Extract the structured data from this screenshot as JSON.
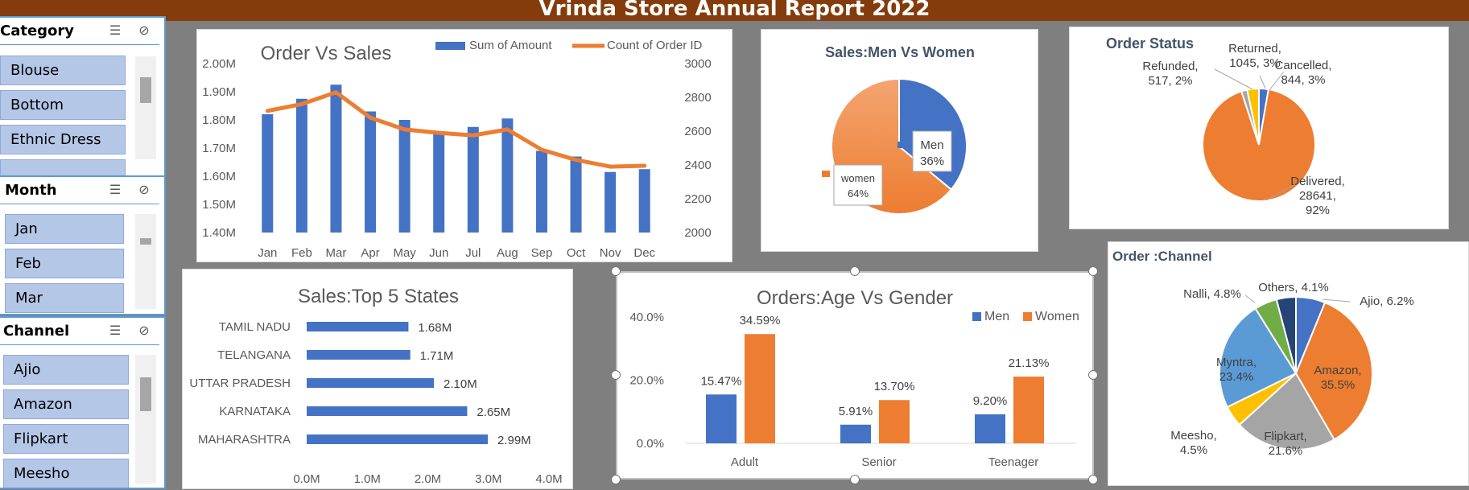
{
  "banner": {
    "title": "Vrinda Store Annual Report 2022"
  },
  "slicers": {
    "category": {
      "title": "Category",
      "items": [
        "Blouse",
        "Bottom",
        "Ethnic Dress",
        ""
      ]
    },
    "month": {
      "title": "Month",
      "items": [
        "Jan",
        "Feb",
        "Mar"
      ]
    },
    "channel": {
      "title": "Channel",
      "items": [
        "Ajio",
        "Amazon",
        "Flipkart",
        "Meesho"
      ]
    }
  },
  "icons": {
    "multiselect": "multi-select-icon",
    "clearfilter": "clear-filter-icon"
  },
  "colors": {
    "blue": "#4472c4",
    "orange": "#ed7d31",
    "gray": "#a5a5a5",
    "yellow": "#ffc000",
    "lightblue": "#5b9bd5",
    "green": "#70ad47",
    "navy": "#264478",
    "banner": "#843c0c"
  },
  "chart_data": [
    {
      "id": "order-vs-sales",
      "type": "bar",
      "title": "Order Vs Sales",
      "categories": [
        "Jan",
        "Feb",
        "Mar",
        "Apr",
        "May",
        "Jun",
        "Jul",
        "Aug",
        "Sep",
        "Oct",
        "Nov",
        "Dec"
      ],
      "series": [
        {
          "name": "Sum of Amount",
          "type": "bar",
          "axis": "left",
          "values": [
            1.82,
            1.875,
            1.925,
            1.83,
            1.8,
            1.76,
            1.775,
            1.805,
            1.69,
            1.67,
            1.615,
            1.625
          ]
        },
        {
          "name": "Count of Order ID",
          "type": "line",
          "axis": "right",
          "values": [
            2720,
            2760,
            2830,
            2680,
            2610,
            2590,
            2575,
            2610,
            2490,
            2430,
            2390,
            2395
          ]
        }
      ],
      "yleft": {
        "min": 1.4,
        "max": 2.0,
        "ticks": [
          "1.40M",
          "1.50M",
          "1.60M",
          "1.70M",
          "1.80M",
          "1.90M",
          "2.00M"
        ]
      },
      "yright": {
        "min": 2000,
        "max": 3000,
        "ticks": [
          "2000",
          "2200",
          "2400",
          "2600",
          "2800",
          "3000"
        ]
      },
      "legend": "top-right"
    },
    {
      "id": "sales-men-women",
      "type": "pie",
      "title": "Sales:Men Vs Women",
      "slices": [
        {
          "label": "Men",
          "value": 36,
          "text": "36%"
        },
        {
          "label": "women",
          "value": 64,
          "text": "64%"
        }
      ]
    },
    {
      "id": "order-status",
      "type": "pie",
      "title": "Order Status",
      "slices": [
        {
          "label": "Cancelled",
          "value": 844,
          "text": "Cancelled,|844, 3%"
        },
        {
          "label": "Delivered",
          "value": 28641,
          "text": "Delivered,|28641,|92%"
        },
        {
          "label": "Refunded",
          "value": 517,
          "text": "Refunded,|517, 2%"
        },
        {
          "label": "Returned",
          "value": 1045,
          "text": "Returned,|1045, 3%"
        }
      ]
    },
    {
      "id": "top-states",
      "type": "bar",
      "orientation": "horizontal",
      "title": "Sales:Top 5 States",
      "categories": [
        "TAMIL NADU",
        "TELANGANA",
        "UTTAR PRADESH",
        "KARNATAKA",
        "MAHARASHTRA"
      ],
      "values": [
        1.68,
        1.71,
        2.1,
        2.65,
        2.99
      ],
      "labels": [
        "1.68M",
        "1.71M",
        "2.10M",
        "2.65M",
        "2.99M"
      ],
      "xlim": [
        0,
        4
      ],
      "ticks": [
        "0.0M",
        "1.0M",
        "2.0M",
        "3.0M",
        "4.0M"
      ]
    },
    {
      "id": "age-vs-gender",
      "type": "bar",
      "title": "Orders:Age Vs Gender",
      "categories": [
        "Adult",
        "Senior",
        "Teenager"
      ],
      "series": [
        {
          "name": "Men",
          "values": [
            15.47,
            5.91,
            9.2
          ],
          "labels": [
            "15.47%",
            "5.91%",
            "9.20%"
          ]
        },
        {
          "name": "Women",
          "values": [
            34.59,
            13.7,
            21.13
          ],
          "labels": [
            "34.59%",
            "13.70%",
            "21.13%"
          ]
        }
      ],
      "ylim": [
        0,
        40
      ],
      "ticks": [
        "0.0%",
        "20.0%",
        "40.0%"
      ],
      "legend": "top-right"
    },
    {
      "id": "order-channel",
      "type": "pie",
      "title": "Order :Channel",
      "slices": [
        {
          "label": "Ajio",
          "value": 6.2,
          "text": "Ajio, 6.2%"
        },
        {
          "label": "Amazon",
          "value": 35.5,
          "text": "Amazon,|35.5%"
        },
        {
          "label": "Flipkart",
          "value": 21.6,
          "text": "Flipkart,|21.6%"
        },
        {
          "label": "Meesho",
          "value": 4.5,
          "text": "Meesho,|4.5%"
        },
        {
          "label": "Myntra",
          "value": 23.4,
          "text": "Myntra,|23.4%"
        },
        {
          "label": "Nalli",
          "value": 4.8,
          "text": "Nalli, 4.8%"
        },
        {
          "label": "Others",
          "value": 4.1,
          "text": "Others, 4.1%"
        }
      ]
    }
  ]
}
